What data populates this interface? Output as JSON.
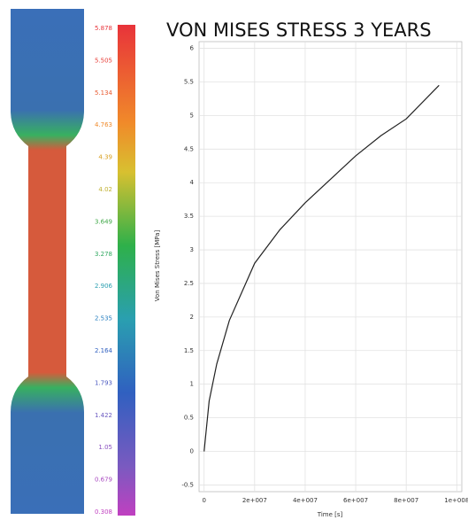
{
  "colorbar": {
    "labels": [
      "5.878",
      "5.505",
      "5.134",
      "4.763",
      "4.39",
      "4.02",
      "3.649",
      "3.278",
      "2.906",
      "2.535",
      "2.164",
      "1.793",
      "1.422",
      "1.05",
      "0.679",
      "0.308"
    ]
  },
  "chart_data": {
    "type": "line",
    "title": "VON MISES STRESS 3 YEARS",
    "x_label": "Time [s]",
    "y_label": "Von Mises Stress [MPa]",
    "x": [
      0,
      2000000,
      5000000,
      10000000,
      20000000,
      30000000,
      40000000,
      50000000,
      60000000,
      70000000,
      80000000,
      93000000
    ],
    "series": [
      {
        "name": "Von Mises Stress",
        "color": "#222222",
        "values": [
          0,
          0.75,
          1.3,
          1.95,
          2.8,
          3.3,
          3.7,
          4.05,
          4.4,
          4.7,
          4.95,
          5.45
        ]
      }
    ],
    "xlim": [
      -2000000,
      102000000
    ],
    "xticks": [
      0,
      {
        "value": 20000000,
        "label": "2e+007"
      },
      {
        "value": 40000000,
        "label": "4e+007"
      },
      {
        "value": 60000000,
        "label": "6e+007"
      },
      {
        "value": 80000000,
        "label": "8e+007"
      },
      {
        "value": 100000000,
        "label": "1e+008"
      }
    ],
    "ylim": [
      -0.6,
      6.1
    ],
    "yticks": [
      -0.5,
      0,
      0.5,
      1,
      1.5,
      2,
      2.5,
      3,
      3.5,
      4,
      4.5,
      5,
      5.5,
      6
    ],
    "grid": true
  }
}
